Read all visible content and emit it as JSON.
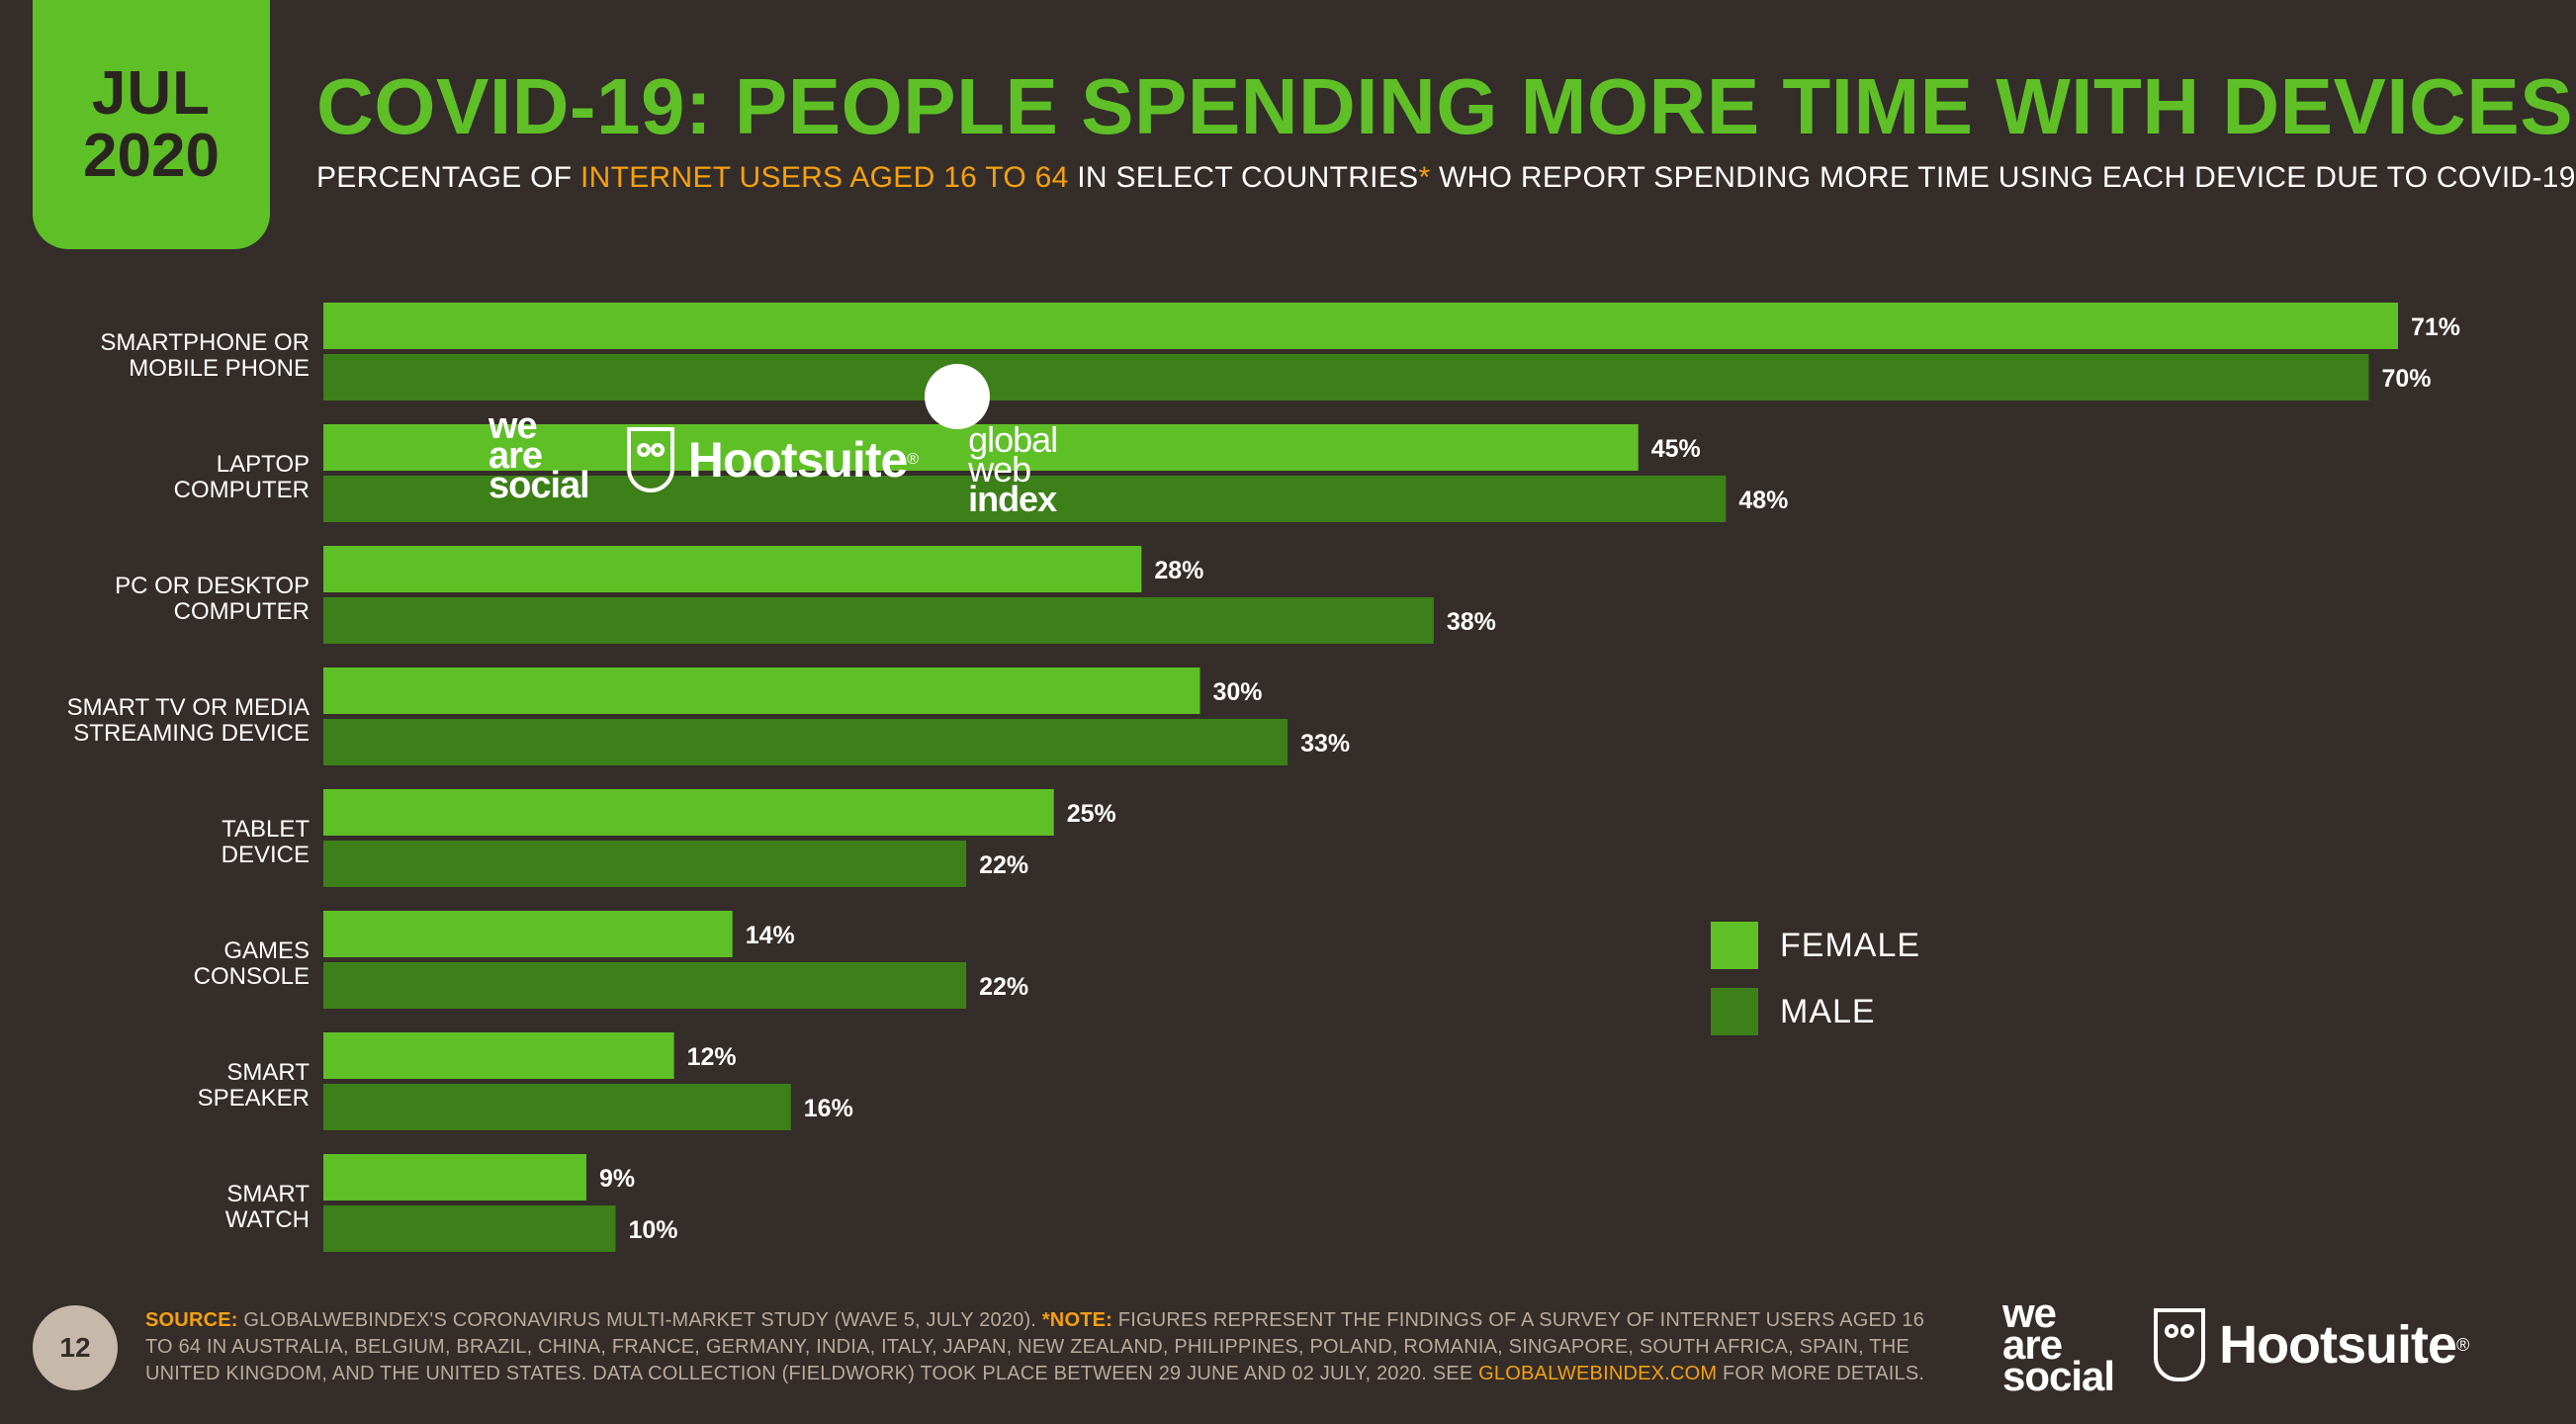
{
  "header": {
    "month": "JUL",
    "year": "2020",
    "title": "COVID-19: PEOPLE SPENDING MORE TIME WITH DEVICES",
    "subtitle_part1": "PERCENTAGE OF ",
    "subtitle_accent": "INTERNET USERS AGED 16 TO 64",
    "subtitle_part2": " IN SELECT COUNTRIES",
    "subtitle_star": "*",
    "subtitle_part3": " WHO REPORT SPENDING MORE TIME USING EACH DEVICE DUE TO COVID-19"
  },
  "colors": {
    "background": "#342d29",
    "female": "#5fbf27",
    "male": "#3d7f19",
    "accent": "#f5a011",
    "text": "#ffffff"
  },
  "chart_data": {
    "type": "bar",
    "orientation": "horizontal",
    "categories": [
      [
        "SMARTPHONE OR",
        "MOBILE PHONE"
      ],
      [
        "LAPTOP",
        "COMPUTER"
      ],
      [
        "PC OR DESKTOP",
        "COMPUTER"
      ],
      [
        "SMART TV OR MEDIA",
        "STREAMING DEVICE"
      ],
      [
        "TABLET",
        "DEVICE"
      ],
      [
        "GAMES",
        "CONSOLE"
      ],
      [
        "SMART",
        "SPEAKER"
      ],
      [
        "SMART",
        "WATCH"
      ]
    ],
    "series": [
      {
        "name": "FEMALE",
        "values": [
          71,
          45,
          28,
          30,
          25,
          14,
          12,
          9
        ],
        "labels": [
          "71%",
          "45%",
          "28%",
          "30%",
          "25%",
          "14%",
          "12%",
          "9%"
        ]
      },
      {
        "name": "MALE",
        "values": [
          70,
          48,
          38,
          33,
          22,
          22,
          16,
          10
        ],
        "labels": [
          "70%",
          "48%",
          "38%",
          "33%",
          "22%",
          "22%",
          "16%",
          "10%"
        ]
      }
    ],
    "xlim": [
      0,
      71
    ],
    "unit": "%",
    "legend_position": "right",
    "grid": false
  },
  "legend": {
    "female": "FEMALE",
    "male": "MALE"
  },
  "watermark": {
    "was_line1": "we",
    "was_line2": "are",
    "was_line3": "social",
    "hootsuite": "Hootsuite",
    "reg": "®",
    "gwi_line1": "global",
    "gwi_line2": "web",
    "gwi_line3": "index"
  },
  "footer": {
    "page_number": "12",
    "source_key": "SOURCE:",
    "source_text": " GLOBALWEBINDEX'S CORONAVIRUS MULTI-MARKET STUDY (WAVE 5, JULY 2020). ",
    "note_key": "*NOTE:",
    "note_text": " FIGURES REPRESENT THE FINDINGS OF A SURVEY OF INTERNET USERS AGED 16 TO 64 IN AUSTRALIA, BELGIUM, BRAZIL, CHINA, FRANCE, GERMANY, INDIA, ITALY, JAPAN, NEW ZEALAND, PHILIPPINES, POLAND, ROMANIA, SINGAPORE, SOUTH AFRICA, SPAIN, THE UNITED KINGDOM, AND THE UNITED STATES. DATA COLLECTION (FIELDWORK) TOOK PLACE BETWEEN 29 JUNE AND 02 JULY, 2020. SEE ",
    "link_text": "GLOBALWEBINDEX.COM",
    "after_link": " FOR MORE DETAILS.",
    "was_line1": "we",
    "was_line2": "are",
    "was_line3": "social",
    "hootsuite": "Hootsuite",
    "reg": "®"
  }
}
